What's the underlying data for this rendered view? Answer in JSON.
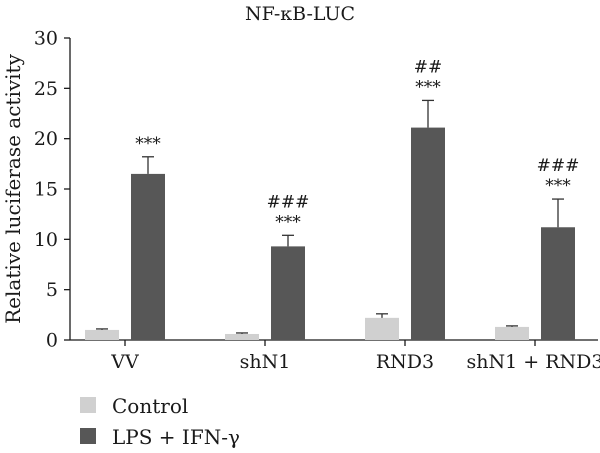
{
  "chart_data": {
    "type": "bar",
    "title": "NF-κB-LUC",
    "ylabel": "Relative luciferase activity",
    "xlabel": "",
    "ylim": [
      0,
      30
    ],
    "yticks": [
      0,
      5,
      10,
      15,
      20,
      25,
      30
    ],
    "categories": [
      "VV",
      "shN1",
      "RND3",
      "shN1 + RND3"
    ],
    "series": [
      {
        "name": "Control",
        "color": "#d0d0d0",
        "values": [
          1.0,
          0.6,
          2.2,
          1.3
        ],
        "errors": [
          0.1,
          0.1,
          0.4,
          0.1
        ]
      },
      {
        "name": "LPS + IFN-γ",
        "color": "#575757",
        "values": [
          16.5,
          9.3,
          21.1,
          11.2
        ],
        "errors": [
          1.7,
          1.1,
          2.7,
          2.8
        ]
      }
    ],
    "annotations": [
      {
        "category": "VV",
        "series": "LPS + IFN-γ",
        "lines": [
          "***"
        ]
      },
      {
        "category": "shN1",
        "series": "LPS + IFN-γ",
        "lines": [
          "###",
          "***"
        ]
      },
      {
        "category": "RND3",
        "series": "LPS + IFN-γ",
        "lines": [
          "##",
          "***"
        ]
      },
      {
        "category": "shN1 + RND3",
        "series": "LPS + IFN-γ",
        "lines": [
          "###",
          "***"
        ]
      }
    ],
    "grid": false,
    "legend_position": "bottom-left"
  }
}
